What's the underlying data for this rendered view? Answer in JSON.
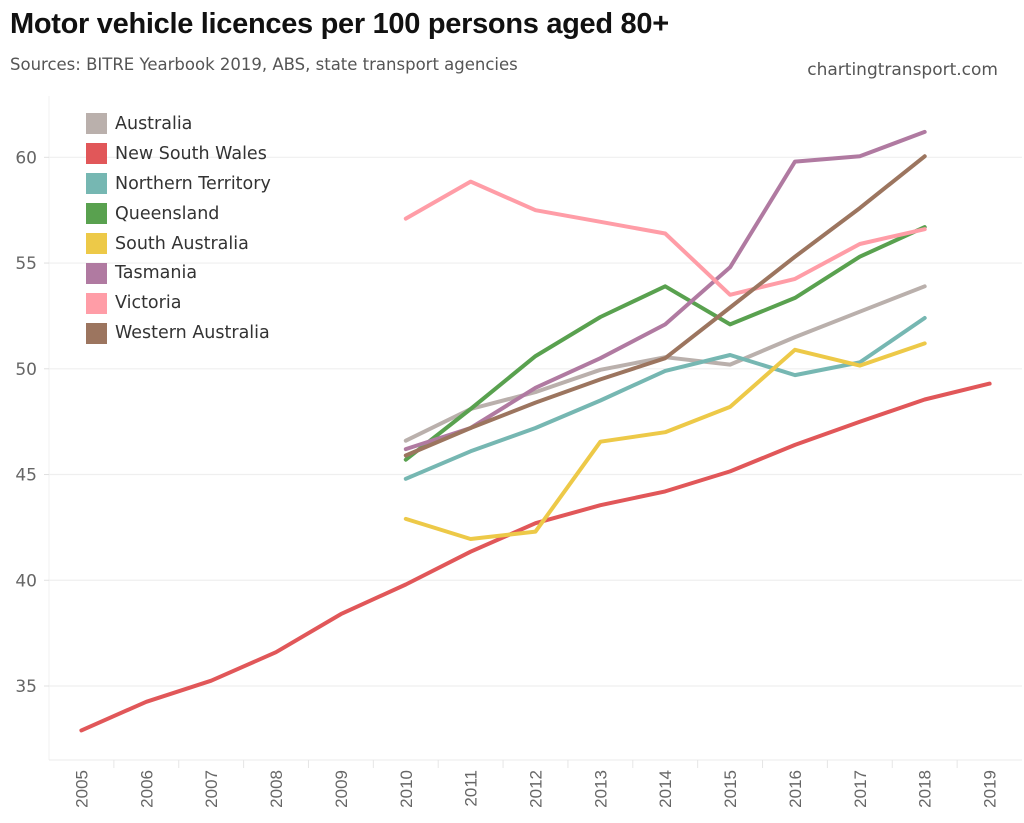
{
  "header": {
    "title": "Motor vehicle licences per 100 persons aged 80+",
    "subtitle": "Sources: BITRE Yearbook 2019, ABS, state transport agencies",
    "site": "chartingtransport.com"
  },
  "chart_data": {
    "type": "line",
    "title": "Motor vehicle licences per 100 persons aged 80+",
    "subtitle": "Sources: BITRE Yearbook 2019, ABS, state transport agencies",
    "xlabel": "",
    "ylabel": "",
    "x": [
      2005,
      2006,
      2007,
      2008,
      2009,
      2010,
      2011,
      2012,
      2013,
      2014,
      2015,
      2016,
      2017,
      2018,
      2019
    ],
    "x_tick_labels": [
      "2005",
      "2006",
      "2007",
      "2008",
      "2009",
      "2010",
      "2011",
      "2012",
      "2013",
      "2014",
      "2015",
      "2016",
      "2017",
      "2018",
      "2019"
    ],
    "y_ticks": [
      35,
      40,
      45,
      50,
      55,
      60
    ],
    "y_tick_labels": [
      "35",
      "40",
      "45",
      "50",
      "55",
      "60"
    ],
    "ylim": [
      31.5,
      62.9
    ],
    "grid": "horizontal",
    "legend_position": "top-left",
    "series": [
      {
        "name": "Australia",
        "color": "#bab0ac",
        "values": [
          null,
          null,
          null,
          null,
          null,
          46.6,
          48.1,
          48.9,
          49.95,
          50.55,
          50.2,
          51.5,
          52.7,
          53.9,
          null
        ]
      },
      {
        "name": "New South Wales",
        "color": "#e15759",
        "values": [
          32.9,
          34.25,
          35.25,
          36.6,
          38.4,
          39.8,
          41.35,
          42.7,
          43.55,
          44.2,
          45.15,
          46.4,
          47.5,
          48.55,
          49.3
        ]
      },
      {
        "name": "Northern Territory",
        "color": "#76b7b2",
        "values": [
          null,
          null,
          null,
          null,
          null,
          44.8,
          46.1,
          47.2,
          48.5,
          49.9,
          50.65,
          49.7,
          50.3,
          52.4,
          null
        ]
      },
      {
        "name": "Queensland",
        "color": "#59a14f",
        "values": [
          null,
          null,
          null,
          null,
          null,
          45.7,
          48.1,
          50.6,
          52.45,
          53.9,
          52.1,
          53.35,
          55.3,
          56.7,
          null
        ]
      },
      {
        "name": "South Australia",
        "color": "#edc948",
        "values": [
          null,
          null,
          null,
          null,
          null,
          42.9,
          41.95,
          42.3,
          46.55,
          47.0,
          48.2,
          50.9,
          50.15,
          51.2,
          null
        ]
      },
      {
        "name": "Tasmania",
        "color": "#b07aa1",
        "values": [
          null,
          null,
          null,
          null,
          null,
          46.2,
          47.2,
          49.1,
          50.5,
          52.1,
          54.8,
          59.8,
          60.05,
          61.2,
          null
        ]
      },
      {
        "name": "Victoria",
        "color": "#ff9da7",
        "values": [
          null,
          null,
          null,
          null,
          null,
          57.1,
          58.85,
          57.5,
          56.95,
          56.4,
          53.5,
          54.25,
          55.9,
          56.6,
          null
        ]
      },
      {
        "name": "Western Australia",
        "color": "#9c755f",
        "values": [
          null,
          null,
          null,
          null,
          null,
          45.9,
          47.2,
          48.4,
          49.5,
          50.5,
          52.9,
          55.3,
          57.6,
          60.05,
          null
        ]
      }
    ]
  }
}
